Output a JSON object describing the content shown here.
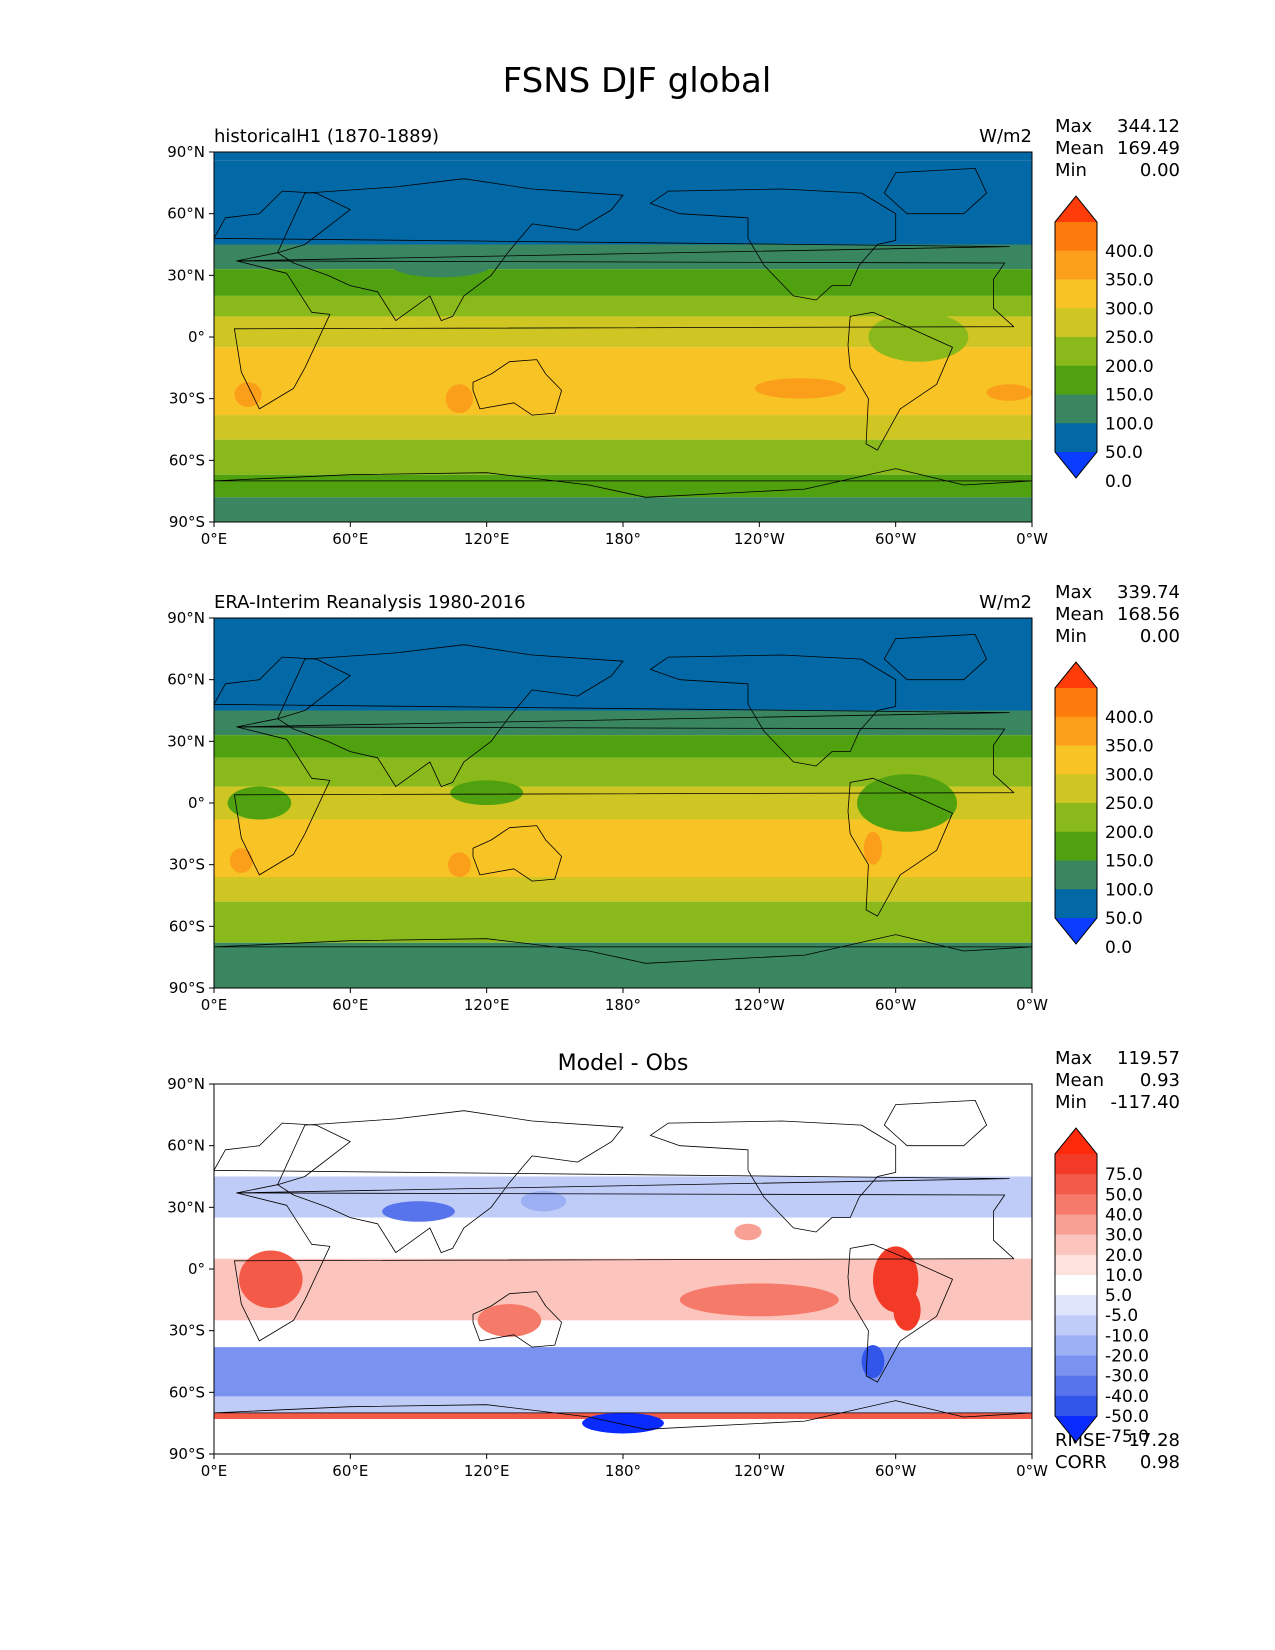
{
  "figure": {
    "title": "FSNS DJF global"
  },
  "chart_data": [
    {
      "type": "heatmap",
      "name": "test",
      "title_left": "historicalH1 (1870-1889)",
      "title_right": "W/m2",
      "title_center": "",
      "stats": [
        {
          "label": "Max",
          "value": "344.12"
        },
        {
          "label": "Mean",
          "value": "169.49"
        },
        {
          "label": "Min",
          "value": "0.00"
        }
      ],
      "bottom_stats": [],
      "xticks": [
        "0°E",
        "60°E",
        "120°E",
        "180°",
        "120°W",
        "60°W",
        "0°W"
      ],
      "yticks": [
        "90°N",
        "60°N",
        "30°N",
        "0°",
        "30°S",
        "60°S",
        "90°S"
      ],
      "xlim": [
        0,
        360
      ],
      "ylim": [
        -90,
        90
      ],
      "colorbar": {
        "levels": [
          "400.0",
          "350.0",
          "300.0",
          "250.0",
          "200.0",
          "150.0",
          "100.0",
          "50.0",
          "0.0"
        ],
        "colors": [
          "#ff3c0a",
          "#fd7a0c",
          "#fb9e1a",
          "#f8c324",
          "#cfc623",
          "#8ab91c",
          "#4fa10f",
          "#3a8660",
          "#0268a6",
          "#0a3dff"
        ]
      },
      "zonal_bands": [
        {
          "lat_top": 90,
          "lat_bottom": 86,
          "value": 0
        },
        {
          "lat_top": 86,
          "lat_bottom": 45,
          "value": 25
        },
        {
          "lat_top": 45,
          "lat_bottom": 33,
          "value": 75
        },
        {
          "lat_top": 33,
          "lat_bottom": 20,
          "value": 125
        },
        {
          "lat_top": 20,
          "lat_bottom": 10,
          "value": 175
        },
        {
          "lat_top": 10,
          "lat_bottom": -5,
          "value": 225
        },
        {
          "lat_top": -5,
          "lat_bottom": -38,
          "value": 275
        },
        {
          "lat_top": -38,
          "lat_bottom": -50,
          "value": 225
        },
        {
          "lat_top": -50,
          "lat_bottom": -67,
          "value": 175
        },
        {
          "lat_top": -67,
          "lat_bottom": -78,
          "value": 125
        },
        {
          "lat_top": -78,
          "lat_bottom": -90,
          "value": 75
        }
      ],
      "anomalies": [
        {
          "lon": 15,
          "lat": -28,
          "rx": 6,
          "ry": 6,
          "value": 325
        },
        {
          "lon": 108,
          "lat": -30,
          "rx": 6,
          "ry": 7,
          "value": 325
        },
        {
          "lon": 258,
          "lat": -25,
          "rx": 20,
          "ry": 5,
          "value": 325
        },
        {
          "lon": 350,
          "lat": -27,
          "rx": 10,
          "ry": 4,
          "value": 325
        },
        {
          "lon": 310,
          "lat": 0,
          "rx": 22,
          "ry": 12,
          "value": 175
        },
        {
          "lon": 100,
          "lat": 35,
          "rx": 22,
          "ry": 6,
          "value": 75
        }
      ]
    },
    {
      "type": "heatmap",
      "name": "reference",
      "title_left": "ERA-Interim Reanalysis 1980-2016",
      "title_right": "W/m2",
      "title_center": "",
      "stats": [
        {
          "label": "Max",
          "value": "339.74"
        },
        {
          "label": "Mean",
          "value": "168.56"
        },
        {
          "label": "Min",
          "value": "0.00"
        }
      ],
      "bottom_stats": [],
      "xticks": [
        "0°E",
        "60°E",
        "120°E",
        "180°",
        "120°W",
        "60°W",
        "0°W"
      ],
      "yticks": [
        "90°N",
        "60°N",
        "30°N",
        "0°",
        "30°S",
        "60°S",
        "90°S"
      ],
      "xlim": [
        0,
        360
      ],
      "ylim": [
        -90,
        90
      ],
      "colorbar": {
        "levels": [
          "400.0",
          "350.0",
          "300.0",
          "250.0",
          "200.0",
          "150.0",
          "100.0",
          "50.0",
          "0.0"
        ],
        "colors": [
          "#ff3c0a",
          "#fd7a0c",
          "#fb9e1a",
          "#f8c324",
          "#cfc623",
          "#8ab91c",
          "#4fa10f",
          "#3a8660",
          "#0268a6",
          "#0a3dff"
        ]
      },
      "zonal_bands": [
        {
          "lat_top": 90,
          "lat_bottom": 45,
          "value": 25
        },
        {
          "lat_top": 45,
          "lat_bottom": 33,
          "value": 75
        },
        {
          "lat_top": 33,
          "lat_bottom": 22,
          "value": 125
        },
        {
          "lat_top": 22,
          "lat_bottom": 8,
          "value": 175
        },
        {
          "lat_top": 8,
          "lat_bottom": -8,
          "value": 225
        },
        {
          "lat_top": -8,
          "lat_bottom": -36,
          "value": 275
        },
        {
          "lat_top": -36,
          "lat_bottom": -48,
          "value": 225
        },
        {
          "lat_top": -48,
          "lat_bottom": -68,
          "value": 175
        },
        {
          "lat_top": -68,
          "lat_bottom": -90,
          "value": 75
        }
      ],
      "anomalies": [
        {
          "lon": 12,
          "lat": -28,
          "rx": 5,
          "ry": 6,
          "value": 325
        },
        {
          "lon": 108,
          "lat": -30,
          "rx": 5,
          "ry": 6,
          "value": 325
        },
        {
          "lon": 290,
          "lat": -22,
          "rx": 4,
          "ry": 8,
          "value": 325
        },
        {
          "lon": 305,
          "lat": 0,
          "rx": 22,
          "ry": 14,
          "value": 125
        },
        {
          "lon": 20,
          "lat": 0,
          "rx": 14,
          "ry": 8,
          "value": 125
        },
        {
          "lon": 120,
          "lat": 5,
          "rx": 16,
          "ry": 6,
          "value": 125
        }
      ]
    },
    {
      "type": "heatmap",
      "name": "diff",
      "title_left": "",
      "title_right": "",
      "title_center": "Model - Obs",
      "stats": [
        {
          "label": "Max",
          "value": "119.57"
        },
        {
          "label": "Mean",
          "value": "0.93"
        },
        {
          "label": "Min",
          "value": "-117.40"
        }
      ],
      "bottom_stats": [
        {
          "label": "RMSE",
          "value": "17.28"
        },
        {
          "label": "CORR",
          "value": "0.98"
        }
      ],
      "xticks": [
        "0°E",
        "60°E",
        "120°E",
        "180°",
        "120°W",
        "60°W",
        "0°W"
      ],
      "yticks": [
        "90°N",
        "60°N",
        "30°N",
        "0°",
        "30°S",
        "60°S",
        "90°S"
      ],
      "xlim": [
        0,
        360
      ],
      "ylim": [
        -90,
        90
      ],
      "colorbar": {
        "levels": [
          "75.0",
          "50.0",
          "40.0",
          "30.0",
          "20.0",
          "10.0",
          "5.0",
          "-5.0",
          "-10.0",
          "-20.0",
          "-30.0",
          "-40.0",
          "-50.0",
          "-75.0"
        ],
        "colors": [
          "#ff2a0a",
          "#f23a26",
          "#f45a48",
          "#f67a6a",
          "#f9a095",
          "#fbc5bd",
          "#fde3dc",
          "#ffffff",
          "#dfe5fb",
          "#c0ccf8",
          "#9db0f4",
          "#7b93f0",
          "#5774ec",
          "#3356ea",
          "#0a2bff"
        ]
      },
      "zonal_bands": [
        {
          "lat_top": 90,
          "lat_bottom": 45,
          "value": 0
        },
        {
          "lat_top": 45,
          "lat_bottom": 25,
          "value": -12
        },
        {
          "lat_top": 25,
          "lat_bottom": 5,
          "value": 0
        },
        {
          "lat_top": 5,
          "lat_bottom": -25,
          "value": 15
        },
        {
          "lat_top": -25,
          "lat_bottom": -38,
          "value": 0
        },
        {
          "lat_top": -38,
          "lat_bottom": -62,
          "value": -35
        },
        {
          "lat_top": -62,
          "lat_bottom": -70,
          "value": -15
        },
        {
          "lat_top": -70,
          "lat_bottom": -73,
          "value": 45
        },
        {
          "lat_top": -73,
          "lat_bottom": -90,
          "value": 0
        }
      ],
      "anomalies": [
        {
          "lon": 25,
          "lat": -5,
          "rx": 14,
          "ry": 14,
          "value": 45
        },
        {
          "lon": 300,
          "lat": -5,
          "rx": 10,
          "ry": 16,
          "value": 60
        },
        {
          "lon": 305,
          "lat": -20,
          "rx": 6,
          "ry": 10,
          "value": 50
        },
        {
          "lon": 130,
          "lat": -25,
          "rx": 14,
          "ry": 8,
          "value": 30
        },
        {
          "lon": 180,
          "lat": -75,
          "rx": 18,
          "ry": 5,
          "value": -80
        },
        {
          "lon": 90,
          "lat": 28,
          "rx": 16,
          "ry": 5,
          "value": -45
        },
        {
          "lon": 145,
          "lat": 33,
          "rx": 10,
          "ry": 5,
          "value": -30
        },
        {
          "lon": 240,
          "lat": -15,
          "rx": 35,
          "ry": 8,
          "value": 30
        },
        {
          "lon": 290,
          "lat": -45,
          "rx": 5,
          "ry": 8,
          "value": -60
        },
        {
          "lon": 235,
          "lat": 18,
          "rx": 6,
          "ry": 4,
          "value": 20
        }
      ]
    }
  ]
}
